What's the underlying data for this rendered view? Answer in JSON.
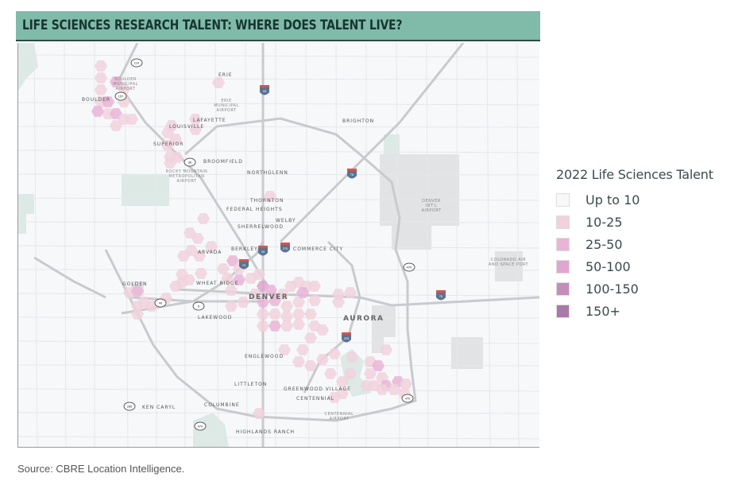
{
  "title": "LIFE SCIENCES RESEARCH TALENT: WHERE DOES TALENT LIVE?",
  "legend": {
    "title": "2022 Life Sciences Talent",
    "items": [
      {
        "label": "Up to 10",
        "color": "#f8f8f8"
      },
      {
        "label": "10-25",
        "color": "#f0d2dc"
      },
      {
        "label": "25-50",
        "color": "#e9b5d6"
      },
      {
        "label": "50-100",
        "color": "#e0a6cf"
      },
      {
        "label": "100-150",
        "color": "#c48dba"
      },
      {
        "label": "150+",
        "color": "#a97aa9"
      }
    ]
  },
  "map": {
    "places": {
      "erie": "ERIE",
      "boulder": "BOULDER",
      "lafayette": "LAFAYETTE",
      "louisville": "LOUISVILLE",
      "superior": "SUPERIOR",
      "broomfield": "BROOMFIELD",
      "northglenn": "NORTHGLENN",
      "brighton": "BRIGHTON",
      "thornton": "THORNTON",
      "federal_heights": "FEDERAL HEIGHTS",
      "welby": "WELBY",
      "sherrelwood": "SHERRELWOOD",
      "arvada": "ARVADA",
      "berkley": "BERKLEY",
      "commerce_city": "COMMERCE CITY",
      "golden": "GOLDEN",
      "wheat_ridge": "WHEAT RIDGE",
      "denver": "DENVER",
      "lakewood": "LAKEWOOD",
      "aurora": "AURORA",
      "englewood": "ENGLEWOOD",
      "littleton": "LITTLETON",
      "greenwood_village": "GREENWOOD VILLAGE",
      "centennial": "CENTENNIAL",
      "ken_caryl": "KEN CARYL",
      "columbine": "COLUMBINE",
      "highlands_ranch": "HIGHLANDS RANCH"
    },
    "airports": {
      "boulder": [
        "BOULDER",
        "MUNICIPAL",
        "AIRPORT"
      ],
      "erie": [
        "ERIE",
        "MUNICIPAL",
        "AIRPORT"
      ],
      "rocky_mountain": [
        "ROCKY MOUNTAIN",
        "METROPOLITAN",
        "AIRPORT"
      ],
      "denver_intl": [
        "DENVER",
        "INT'L",
        "AIRPORT"
      ],
      "colorado_air": [
        "COLORADO AIR",
        "AND SPACE PORT"
      ],
      "centennial": [
        "CENTENNIAL",
        "AIRPORT"
      ]
    },
    "highway_shields": {
      "interstate": [
        "25",
        "76",
        "25",
        "270",
        "70",
        "225",
        "70"
      ],
      "route": [
        "119",
        "157",
        "36",
        "40",
        "6",
        "470",
        "285",
        "470",
        "470"
      ]
    }
  },
  "source": "Source: CBRE Location Intelligence."
}
